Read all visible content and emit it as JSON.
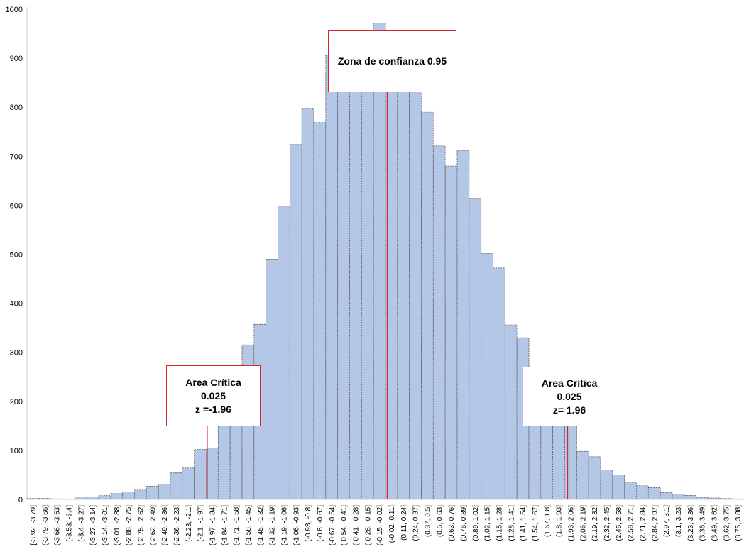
{
  "chart_data": {
    "type": "bar",
    "title": "",
    "xlabel": "",
    "ylabel": "",
    "ylim": [
      0,
      1000
    ],
    "yticks": [
      0,
      100,
      200,
      300,
      400,
      500,
      600,
      700,
      800,
      900,
      1000
    ],
    "bar_color": "#b4c7e7",
    "bar_edge_color": "#5a5a5a",
    "marker_color": "#d9252c",
    "grid": false,
    "categories": [
      "[-3.92, -3.79]",
      "(-3.79, -3.66]",
      "(-3.66, -3.53]",
      "(-3.53, -3.4]",
      "(-3.4, -3.27]",
      "(-3.27, -3.14]",
      "(-3.14, -3.01]",
      "(-3.01, -2.88]",
      "(-2.88, -2.75]",
      "(-2.75, -2.62]",
      "(-2.62, -2.49]",
      "(-2.49, -2.36]",
      "(-2.36, -2.23]",
      "(-2.23, -2.1]",
      "(-2.1, -1.97]",
      "(-1.97, -1.84]",
      "(-1.84, -1.71]",
      "(-1.71, -1.58]",
      "(-1.58, -1.45]",
      "(-1.45, -1.32]",
      "(-1.32, -1.19]",
      "(-1.19, -1.06]",
      "(-1.06, -0.93]",
      "(-0.93, -0.8]",
      "(-0.8, -0.67]",
      "(-0.67, -0.54]",
      "(-0.54, -0.41]",
      "(-0.41, -0.28]",
      "(-0.28, -0.15]",
      "(-0.15, -0.02]",
      "(-0.02, 0.11]",
      "(0.11, 0.24]",
      "(0.24, 0.37]",
      "(0.37, 0.5]",
      "(0.5, 0.63]",
      "(0.63, 0.76]",
      "(0.76, 0.89]",
      "(0.89, 1.02]",
      "(1.02, 1.15]",
      "(1.15, 1.28]",
      "(1.28, 1.41]",
      "(1.41, 1.54]",
      "(1.54, 1.67]",
      "(1.67, 1.8]",
      "(1.8, 1.93]",
      "(1.93, 2.06]",
      "(2.06, 2.19]",
      "(2.19, 2.32]",
      "(2.32, 2.45]",
      "(2.45, 2.58]",
      "(2.58, 2.71]",
      "(2.71, 2.84]",
      "(2.84, 2.97]",
      "(2.97, 3.1]",
      "(3.1, 3.23]",
      "(3.23, 3.36]",
      "(3.36, 3.49]",
      "(3.49, 3.62]",
      "(3.62, 3.75]",
      "(3.75, 3.88]"
    ],
    "values": [
      2,
      2,
      1,
      0,
      5,
      5,
      8,
      12,
      15,
      19,
      27,
      31,
      54,
      64,
      102,
      105,
      165,
      230,
      315,
      357,
      490,
      598,
      724,
      798,
      769,
      906,
      925,
      940,
      950,
      972,
      930,
      900,
      860,
      790,
      721,
      680,
      712,
      614,
      502,
      472,
      356,
      330,
      250,
      200,
      180,
      150,
      98,
      87,
      60,
      50,
      34,
      28,
      24,
      14,
      11,
      8,
      4,
      3,
      2,
      1
    ],
    "annotations": [
      {
        "lines": [
          "Area Crítica",
          "0.025",
          "z =-1.96"
        ],
        "marker_x": -1.96
      },
      {
        "lines": [
          "Zona de confianza 0.95"
        ],
        "marker_x": 0.0
      },
      {
        "lines": [
          "Area Crítica",
          "0.025",
          "z= 1.96"
        ],
        "marker_x": 1.96
      }
    ]
  }
}
